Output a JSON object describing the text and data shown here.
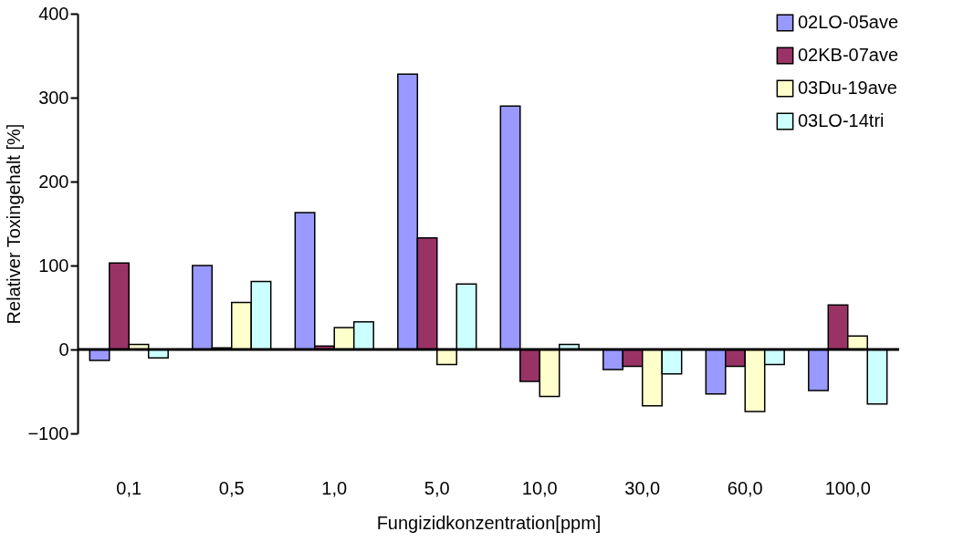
{
  "chart_data": {
    "type": "bar",
    "xlabel": "Fungizidkonzentration[ppm]",
    "ylabel": "Relativer Toxingehalt [%]",
    "categories": [
      "0,1",
      "0,5",
      "1,0",
      "5,0",
      "10,0",
      "30,0",
      "60,0",
      "100,0"
    ],
    "series": [
      {
        "name": "02LO-05ave",
        "color": "#9999ff",
        "values": [
          -13,
          100,
          163,
          328,
          290,
          -24,
          -53,
          -49
        ]
      },
      {
        "name": "02KB-07ave",
        "color": "#993366",
        "values": [
          103,
          2,
          4,
          133,
          -38,
          -20,
          -20,
          53
        ]
      },
      {
        "name": "03Du-19ave",
        "color": "#ffffcc",
        "values": [
          6,
          56,
          26,
          -18,
          -56,
          -67,
          -74,
          16
        ]
      },
      {
        "name": "03LO-14tri",
        "color": "#ccffff",
        "values": [
          -10,
          81,
          33,
          78,
          6,
          -29,
          -18,
          -65
        ]
      }
    ],
    "ylim": [
      -100,
      400
    ],
    "yticks": [
      -100,
      0,
      100,
      200,
      300,
      400
    ],
    "ref_lines": [
      {
        "axis": "y",
        "value": 0,
        "color": "#000000"
      }
    ],
    "grid": false,
    "legend": "top right"
  }
}
